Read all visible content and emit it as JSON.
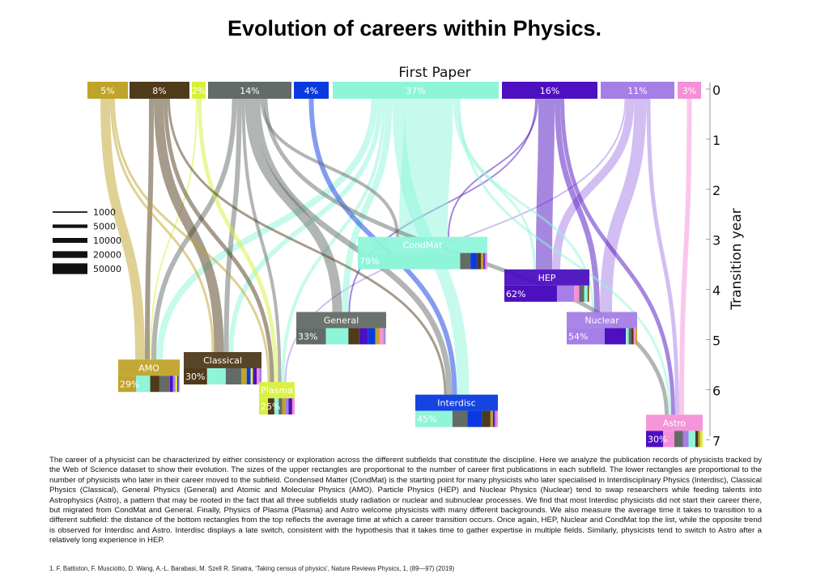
{
  "title": "Evolution of careers within Physics.",
  "top_label": "First Paper",
  "axis_label": "Transition year",
  "axis_ticks": [
    "0",
    "1",
    "2",
    "3",
    "4",
    "5",
    "6",
    "7"
  ],
  "colors": {
    "AMO": "#c0a32a",
    "Classical": "#4f3a1a",
    "Plasma": "#d8f03a",
    "General": "#636b67",
    "Interdisc": "#0a3adf",
    "CondMat": "#8ef5d9",
    "HEP": "#4d10c0",
    "Nuclear": "#a57ee6",
    "Astro": "#f590d8"
  },
  "first_paper": [
    {
      "field": "AMO",
      "pct": "5%"
    },
    {
      "field": "Classical",
      "pct": "8%"
    },
    {
      "field": "Plasma",
      "pct": "2%"
    },
    {
      "field": "General",
      "pct": "14%"
    },
    {
      "field": "Interdisc",
      "pct": "4%"
    },
    {
      "field": "CondMat",
      "pct": "37%"
    },
    {
      "field": "HEP",
      "pct": "16%"
    },
    {
      "field": "Nuclear",
      "pct": "11%"
    },
    {
      "field": "Astro",
      "pct": "3%"
    }
  ],
  "legend": [
    "1000",
    "5000",
    "10000",
    "20000",
    "50000"
  ],
  "legend_values": [
    1000,
    5000,
    10000,
    20000,
    50000
  ],
  "destinations": [
    {
      "field": "CondMat",
      "label": "CondMat",
      "year": 2.95,
      "pct": "79%",
      "composition": [
        [
          "CondMat",
          0.79
        ],
        [
          "General",
          0.08
        ],
        [
          "Interdisc",
          0.05
        ],
        [
          "Classical",
          0.03
        ],
        [
          "AMO",
          0.02
        ],
        [
          "HEP",
          0.01
        ],
        [
          "Nuclear",
          0.01
        ],
        [
          "Astro",
          0.01
        ]
      ]
    },
    {
      "field": "HEP",
      "label": "HEP",
      "year": 3.6,
      "pct": "62%",
      "composition": [
        [
          "HEP",
          0.62
        ],
        [
          "Nuclear",
          0.2
        ],
        [
          "Astro",
          0.06
        ],
        [
          "General",
          0.06
        ],
        [
          "CondMat",
          0.04
        ],
        [
          "Classical",
          0.01
        ],
        [
          "AMO",
          0.01
        ]
      ]
    },
    {
      "field": "General",
      "label": "General",
      "year": 4.45,
      "pct": "33%",
      "composition": [
        [
          "General",
          0.33
        ],
        [
          "CondMat",
          0.25
        ],
        [
          "Classical",
          0.12
        ],
        [
          "HEP",
          0.1
        ],
        [
          "Interdisc",
          0.08
        ],
        [
          "AMO",
          0.05
        ],
        [
          "Astro",
          0.04
        ],
        [
          "Nuclear",
          0.02
        ],
        [
          "Plasma",
          0.01
        ]
      ]
    },
    {
      "field": "Nuclear",
      "label": "Nuclear",
      "year": 4.45,
      "pct": "54%",
      "composition": [
        [
          "Nuclear",
          0.54
        ],
        [
          "HEP",
          0.3
        ],
        [
          "CondMat",
          0.04
        ],
        [
          "General",
          0.04
        ],
        [
          "Classical",
          0.03
        ],
        [
          "Astro",
          0.03
        ],
        [
          "AMO",
          0.02
        ]
      ]
    },
    {
      "field": "Classical",
      "label": "Classical",
      "year": 5.25,
      "pct": "30%",
      "composition": [
        [
          "Classical",
          0.3
        ],
        [
          "CondMat",
          0.24
        ],
        [
          "General",
          0.2
        ],
        [
          "AMO",
          0.07
        ],
        [
          "Interdisc",
          0.05
        ],
        [
          "Plasma",
          0.03
        ],
        [
          "HEP",
          0.05
        ],
        [
          "Astro",
          0.03
        ],
        [
          "Nuclear",
          0.03
        ]
      ]
    },
    {
      "field": "AMO",
      "label": "AMO",
      "year": 5.4,
      "pct": "29%",
      "composition": [
        [
          "AMO",
          0.29
        ],
        [
          "CondMat",
          0.23
        ],
        [
          "Classical",
          0.15
        ],
        [
          "General",
          0.17
        ],
        [
          "HEP",
          0.05
        ],
        [
          "Nuclear",
          0.04
        ],
        [
          "Plasma",
          0.03
        ],
        [
          "Interdisc",
          0.02
        ],
        [
          "Astro",
          0.02
        ]
      ]
    },
    {
      "field": "Plasma",
      "label": "Plasma",
      "year": 5.85,
      "pct": "25%",
      "composition": [
        [
          "Plasma",
          0.25
        ],
        [
          "Classical",
          0.18
        ],
        [
          "CondMat",
          0.12
        ],
        [
          "General",
          0.1
        ],
        [
          "AMO",
          0.1
        ],
        [
          "Nuclear",
          0.08
        ],
        [
          "HEP",
          0.1
        ],
        [
          "Astro",
          0.07
        ]
      ]
    },
    {
      "field": "Interdisc",
      "label": "Interdisc",
      "year": 6.1,
      "pct": "45%",
      "composition": [
        [
          "CondMat",
          0.45
        ],
        [
          "General",
          0.18
        ],
        [
          "Interdisc",
          0.18
        ],
        [
          "Classical",
          0.1
        ],
        [
          "AMO",
          0.03
        ],
        [
          "HEP",
          0.02
        ],
        [
          "Nuclear",
          0.02
        ],
        [
          "Astro",
          0.02
        ]
      ]
    },
    {
      "field": "Astro",
      "label": "Astro",
      "year": 6.5,
      "pct": "30%",
      "composition": [
        [
          "HEP",
          0.3
        ],
        [
          "Astro",
          0.2
        ],
        [
          "General",
          0.15
        ],
        [
          "Nuclear",
          0.1
        ],
        [
          "CondMat",
          0.12
        ],
        [
          "Classical",
          0.05
        ],
        [
          "AMO",
          0.04
        ],
        [
          "Plasma",
          0.04
        ]
      ]
    }
  ],
  "flows": [
    {
      "from": "AMO",
      "to": "AMO",
      "value": 41600
    },
    {
      "from": "AMO",
      "to": "Classical",
      "value": 2600
    },
    {
      "from": "AMO",
      "to": "Plasma",
      "value": 2600
    },
    {
      "from": "Classical",
      "to": "AMO",
      "value": 10400
    },
    {
      "from": "Classical",
      "to": "Classical",
      "value": 41600
    },
    {
      "from": "Classical",
      "to": "Plasma",
      "value": 7200
    },
    {
      "from": "Classical",
      "to": "Interdisc",
      "value": 2600
    },
    {
      "from": "Plasma",
      "to": "AMO",
      "value": 1150
    },
    {
      "from": "Plasma",
      "to": "Plasma",
      "value": 7200
    },
    {
      "from": "General",
      "to": "AMO",
      "value": 10400
    },
    {
      "from": "General",
      "to": "Classical",
      "value": 10400
    },
    {
      "from": "General",
      "to": "Plasma",
      "value": 4600
    },
    {
      "from": "General",
      "to": "General",
      "value": 41600
    },
    {
      "from": "General",
      "to": "Interdisc",
      "value": 14000
    },
    {
      "from": "General",
      "to": "CondMat",
      "value": 4600
    },
    {
      "from": "General",
      "to": "Astro",
      "value": 7200
    },
    {
      "from": "Interdisc",
      "to": "Interdisc",
      "value": 10400
    },
    {
      "from": "CondMat",
      "to": "AMO",
      "value": 18500
    },
    {
      "from": "CondMat",
      "to": "Classical",
      "value": 10400
    },
    {
      "from": "CondMat",
      "to": "Plasma",
      "value": 4600
    },
    {
      "from": "CondMat",
      "to": "General",
      "value": 18500
    },
    {
      "from": "CondMat",
      "to": "CondMat",
      "value": 1040000
    },
    {
      "from": "CondMat",
      "to": "Interdisc",
      "value": 65000
    },
    {
      "from": "CondMat",
      "to": "HEP",
      "value": 2600
    },
    {
      "from": "CondMat",
      "to": "Nuclear",
      "value": 2600
    },
    {
      "from": "CondMat",
      "to": "Astro",
      "value": 2600
    },
    {
      "from": "HEP",
      "to": "General",
      "value": 1150
    },
    {
      "from": "HEP",
      "to": "CondMat",
      "value": 1150
    },
    {
      "from": "HEP",
      "to": "HEP",
      "value": 116000
    },
    {
      "from": "HEP",
      "to": "Nuclear",
      "value": 14000
    },
    {
      "from": "HEP",
      "to": "Astro",
      "value": 7200
    },
    {
      "from": "Nuclear",
      "to": "Plasma",
      "value": 1150
    },
    {
      "from": "Nuclear",
      "to": "HEP",
      "value": 29000
    },
    {
      "from": "Nuclear",
      "to": "Nuclear",
      "value": 65000
    },
    {
      "from": "Nuclear",
      "to": "Astro",
      "value": 7200
    },
    {
      "from": "Astro",
      "to": "Astro",
      "value": 10400
    }
  ],
  "caption": "The career of a physicist can be characterized by either consistency or exploration across the different subfields that constitute the discipline. Here we analyze the publication records of physicists tracked by the Web of Science dataset to show their evolution. The sizes of the upper rectangles are proportional to the number of career first publications in each subfield. The lower rectangles are proportional to the number of physicists who later in their career moved to the subfield. Condensed Matter (CondMat) is the starting point for many physicists who later specialised in Interdisciplinary Physics (Interdisc), Classical Physics (Classical), General Physics (General) and Atomic and Molecular Physics (AMO). Particle Physics (HEP) and Nuclear Physics (Nuclear) tend to swap researchers while feeding talents into Astrophysics (Astro), a pattern that may be rooted in the fact that all three subfields study radiation or nuclear and subnuclear processes. We find that most Interdisc physicists did not start their career there, but migrated from CondMat and General. Finally, Physics of Plasma (Plasma) and Astro welcome physicists with many different backgrounds. We also measure the average time it takes to transition to a different subfield: the distance of the bottom rectangles from the top reflects the average time at which a career transition occurs. Once again, HEP, Nuclear and CondMat top the list, while the opposite trend is observed for Interdisc and Astro. Interdisc displays a late switch, consistent with the hypothesis that it takes time to gather expertise in multiple fields. Similarly, physicists tend to switch to Astro after a relatively long experience in HEP.",
  "reference": "1. F. Battiston, F. Musciotto, D. Wang, A.-L. Barabasi, M. Szell R. Sinatra, ‘Taking census of physics’, Nature Reviews Physics, 1, (89—97) (2019)"
}
